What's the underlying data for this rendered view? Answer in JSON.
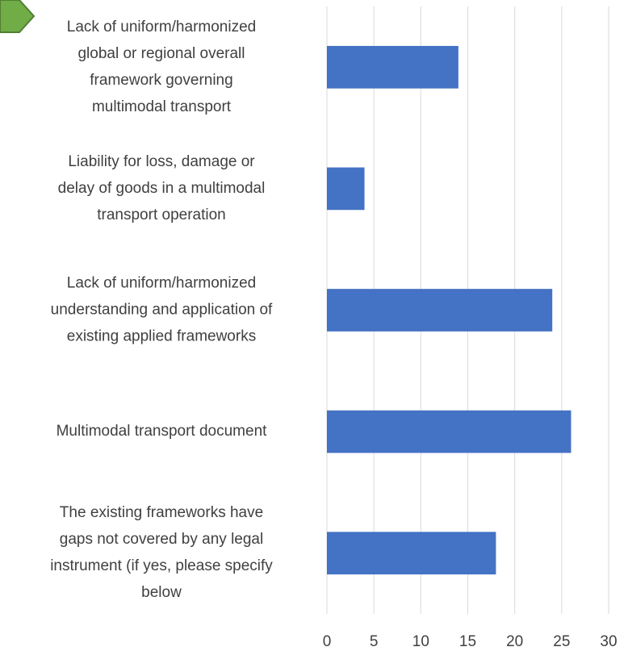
{
  "chart_data": {
    "type": "hbar",
    "categories": [
      [
        "Lack of uniform/harmonized",
        "global or regional overall",
        "framework governing",
        "multimodal transport"
      ],
      [
        "Liability for loss, damage or",
        "delay of goods in a multimodal",
        "transport operation"
      ],
      [
        "Lack of uniform/harmonized",
        "understanding and application of",
        "existing applied frameworks"
      ],
      [
        "Multimodal transport document"
      ],
      [
        "The existing frameworks have",
        "gaps not covered by any legal",
        "instrument (if yes, please specify",
        "below"
      ]
    ],
    "values": [
      14,
      4,
      24,
      26,
      18
    ],
    "color": "#4472c4",
    "xlim": [
      0,
      30
    ],
    "xticks": [
      0,
      5,
      10,
      15,
      20,
      25,
      30
    ],
    "grid": true
  }
}
